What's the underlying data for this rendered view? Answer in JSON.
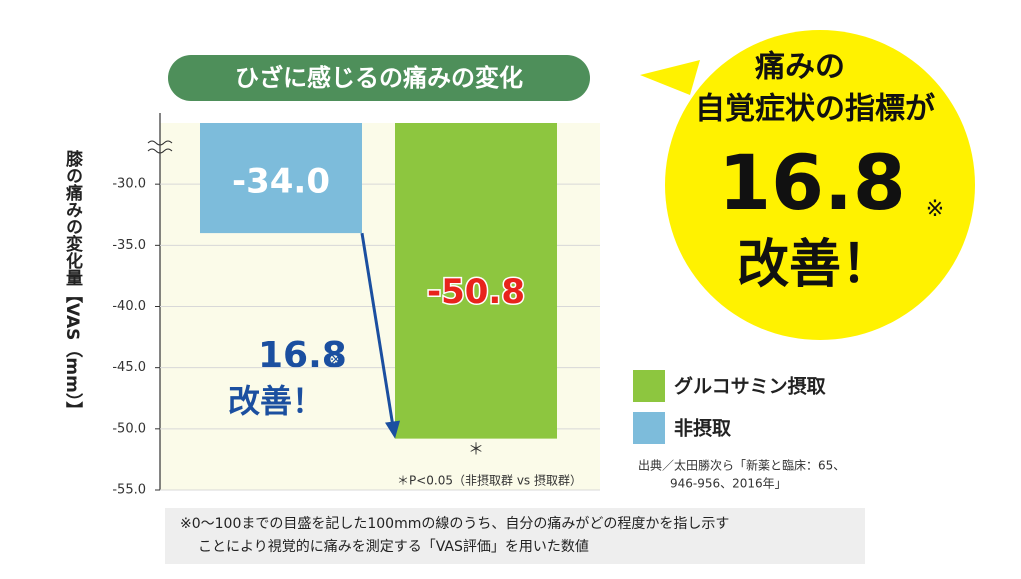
{
  "chart_data": {
    "type": "bar",
    "title": "ひざに感じるの痛みの変化",
    "y_label": "膝の痛みの変化量【VAS（mm）】",
    "categories": [
      null
    ],
    "series": [
      {
        "name": "非摂取",
        "color": "#7dbcdb",
        "values": [
          -34.0
        ],
        "value_labels": [
          "-34.0"
        ]
      },
      {
        "name": "グルコサミン摂取",
        "color": "#8dc63f",
        "values": [
          -50.8
        ],
        "value_labels": [
          "-50.8"
        ]
      }
    ],
    "ylim": [
      -55,
      -25
    ],
    "yticks": [
      {
        "value": -30,
        "label": "-30.0"
      },
      {
        "value": -35,
        "label": "-35.0"
      },
      {
        "value": -40,
        "label": "-40.0"
      },
      {
        "value": -45,
        "label": "-45.0"
      },
      {
        "value": -50,
        "label": "-50.0"
      },
      {
        "value": -55,
        "label": "-55.0"
      }
    ],
    "grid": true,
    "annotations": {
      "improvement_value": "16.8",
      "improvement_mark": "※",
      "improvement_text": "改善！",
      "significance_mark": "＊",
      "significance_note": "＊P<0.05（非摂取群 vs 摂取群）",
      "source_line1": "出典／太田勝次ら「新薬と臨床：65、",
      "source_line2": "946-956、2016年」",
      "footnote_line1": "※0〜100までの目盛を記した100mmの線のうち、自分の痛みがどの程度かを指し示す",
      "footnote_line2": "ことにより視覚的に痛みを測定する「VAS評価」を用いた数値"
    },
    "bubble": {
      "line1": "痛みの",
      "line2": "自覚症状の指標が",
      "value": "16.8",
      "mark": "※",
      "text": "改善！"
    }
  }
}
